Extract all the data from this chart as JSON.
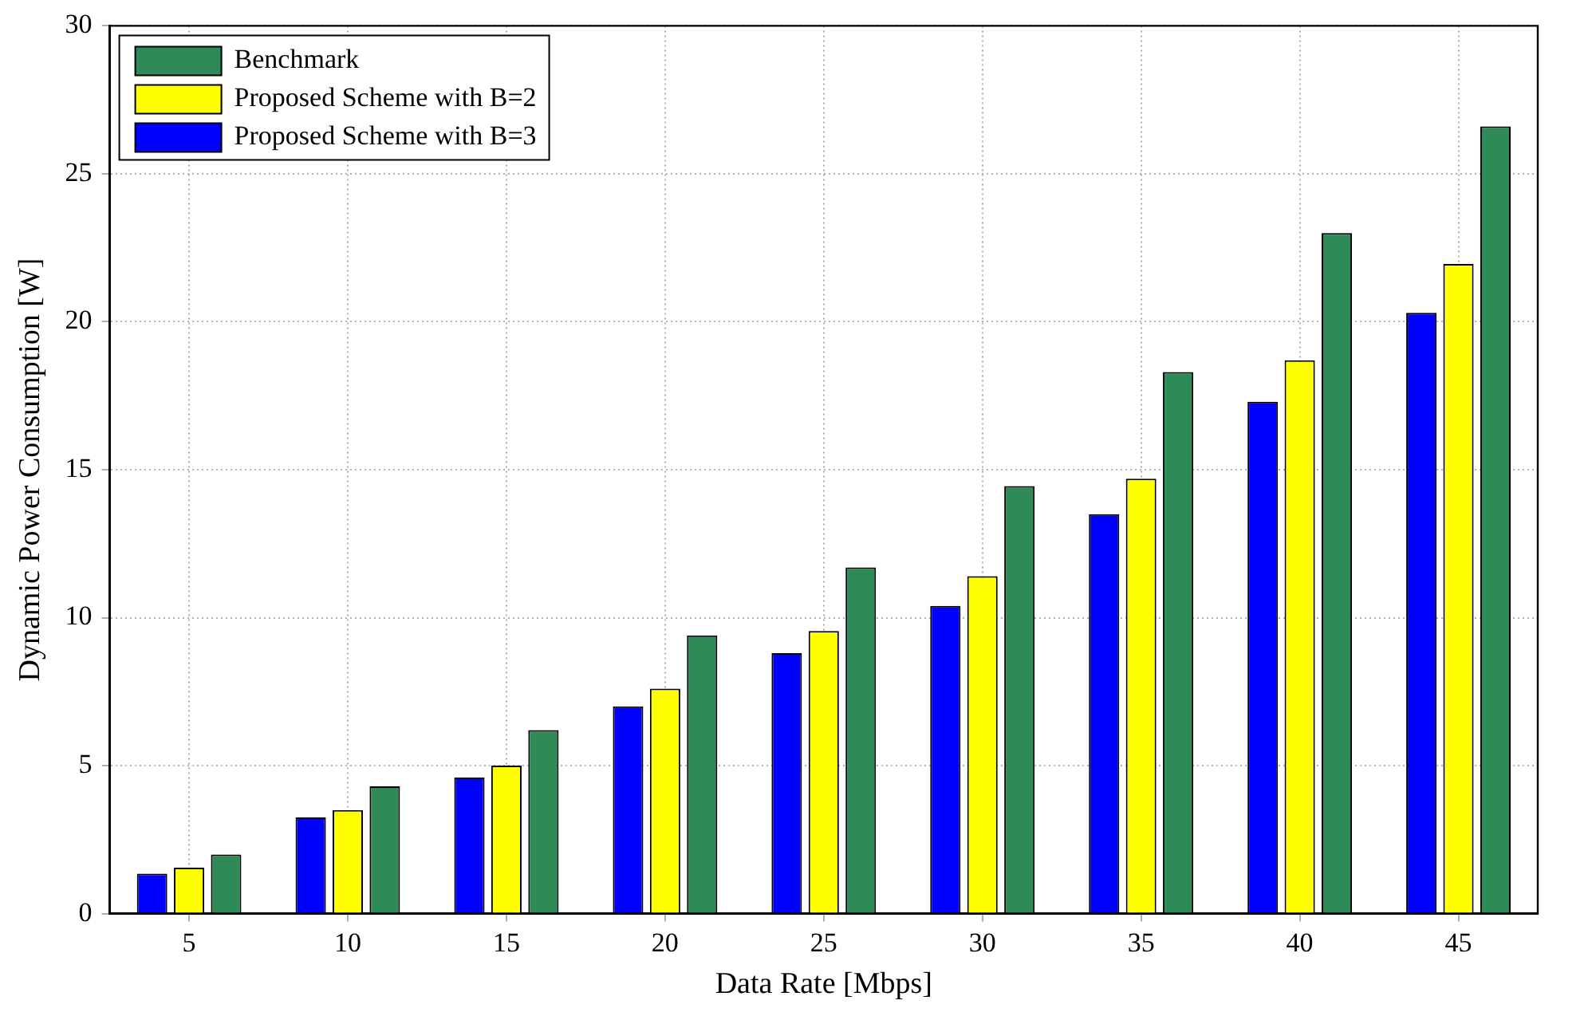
{
  "chart_data": {
    "type": "bar",
    "xlabel": "Data Rate [Mbps]",
    "ylabel": "Dynamic Power Consumption [W]",
    "categories": [
      "5",
      "10",
      "15",
      "20",
      "25",
      "30",
      "35",
      "40",
      "45"
    ],
    "series": [
      {
        "name": "Proposed Scheme with B=3",
        "color": "#0000ff",
        "values": [
          1.35,
          3.25,
          4.6,
          7.0,
          8.8,
          10.4,
          13.5,
          17.3,
          20.3
        ]
      },
      {
        "name": "Proposed Scheme with B=2",
        "color": "#ffff00",
        "values": [
          1.55,
          3.5,
          5.0,
          7.6,
          9.55,
          11.4,
          14.7,
          18.7,
          21.95
        ]
      },
      {
        "name": "Benchmark",
        "color": "#2e8b57",
        "values": [
          2.0,
          4.3,
          6.2,
          9.4,
          11.7,
          14.45,
          18.3,
          23.0,
          26.6
        ]
      }
    ],
    "ylim": [
      0,
      30
    ],
    "yticks": [
      0,
      5,
      10,
      15,
      20,
      25,
      30
    ],
    "grid": true,
    "legend": "top left"
  }
}
